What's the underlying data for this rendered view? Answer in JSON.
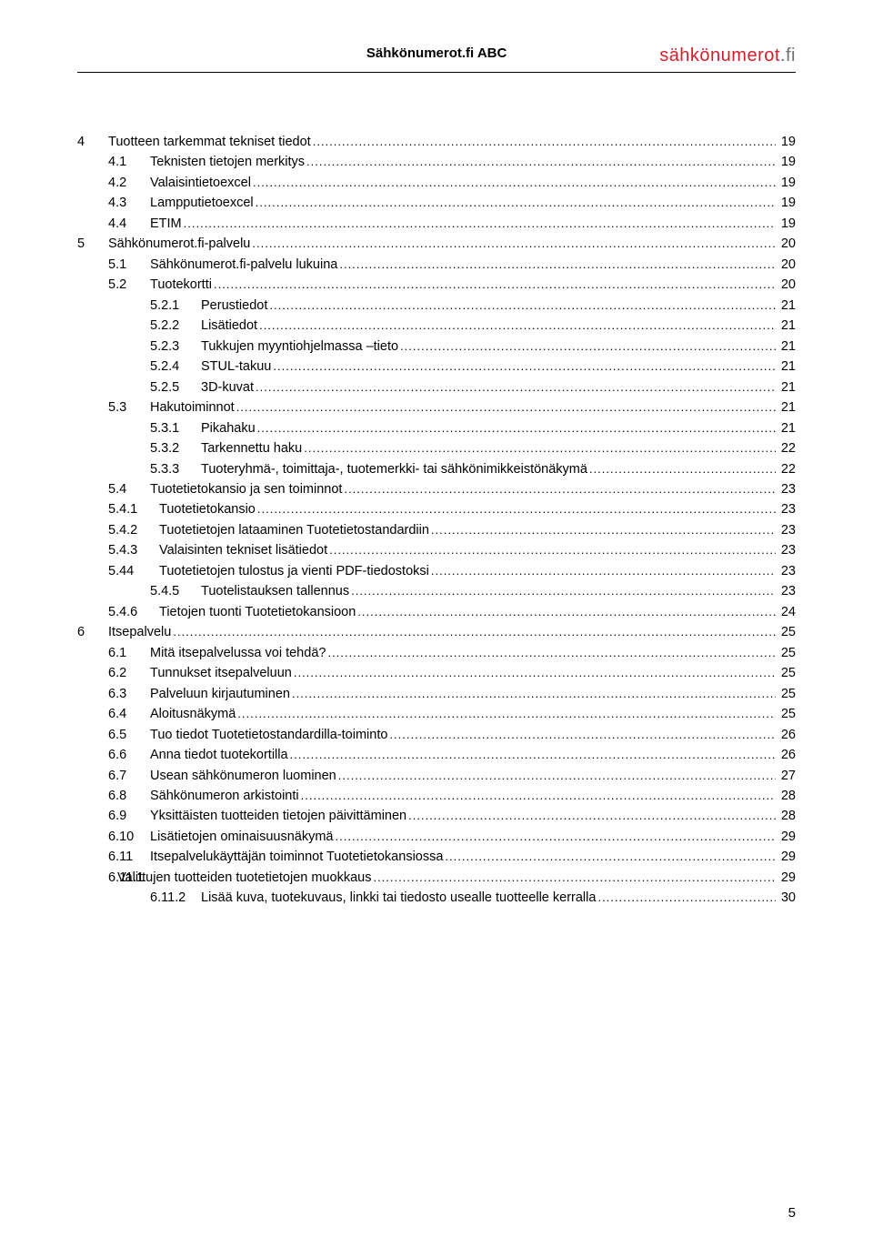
{
  "header": {
    "title": "Sähkönumerot.fi ABC",
    "logo_part1": "sähkönumerot",
    "logo_part2": ".fi"
  },
  "page_number": "5",
  "toc": [
    {
      "lvl": "lvl-1",
      "num": "4",
      "label": "Tuotteen tarkemmat tekniset tiedot",
      "page": "19"
    },
    {
      "lvl": "lvl-2",
      "num": "4.1",
      "label": "Teknisten tietojen merkitys",
      "page": "19"
    },
    {
      "lvl": "lvl-2",
      "num": "4.2",
      "label": "Valaisintietoexcel",
      "page": "19"
    },
    {
      "lvl": "lvl-2",
      "num": "4.3",
      "label": "Lampputietoexcel",
      "page": "19"
    },
    {
      "lvl": "lvl-2",
      "num": "4.4",
      "label": "ETIM",
      "page": "19"
    },
    {
      "lvl": "lvl-1",
      "num": "5",
      "label": "Sähkönumerot.fi-palvelu",
      "page": "20"
    },
    {
      "lvl": "lvl-2",
      "num": "5.1",
      "label": "Sähkönumerot.fi-palvelu lukuina",
      "page": "20"
    },
    {
      "lvl": "lvl-2",
      "num": "5.2",
      "label": "Tuotekortti",
      "page": "20"
    },
    {
      "lvl": "lvl-3",
      "num": "5.2.1",
      "label": "Perustiedot",
      "page": "21"
    },
    {
      "lvl": "lvl-3",
      "num": "5.2.2",
      "label": "Lisätiedot",
      "page": "21"
    },
    {
      "lvl": "lvl-3",
      "num": "5.2.3",
      "label": "Tukkujen myyntiohjelmassa –tieto",
      "page": "21"
    },
    {
      "lvl": "lvl-3",
      "num": "5.2.4",
      "label": "STUL-takuu",
      "page": "21"
    },
    {
      "lvl": "lvl-3",
      "num": "5.2.5",
      "label": "3D-kuvat",
      "page": "21"
    },
    {
      "lvl": "lvl-2",
      "num": "5.3",
      "label": "Hakutoiminnot",
      "page": "21"
    },
    {
      "lvl": "lvl-3",
      "num": "5.3.1",
      "label": "Pikahaku",
      "page": "21"
    },
    {
      "lvl": "lvl-3",
      "num": "5.3.2",
      "label": "Tarkennettu haku",
      "page": "22"
    },
    {
      "lvl": "lvl-3",
      "num": "5.3.3",
      "label": "Tuoteryhmä-, toimittaja-, tuotemerkki- tai sähkönimikkeistönäkymä",
      "page": "22"
    },
    {
      "lvl": "lvl-2",
      "num": "5.4",
      "label": "Tuotetietokansio ja sen toiminnot",
      "page": "23"
    },
    {
      "lvl": "lvl-2alt",
      "num": "5.4.1",
      "label": "Tuotetietokansio",
      "page": "23"
    },
    {
      "lvl": "lvl-2alt",
      "num": "5.4.2",
      "label": "Tuotetietojen lataaminen Tuotetietostandardiin",
      "page": "23"
    },
    {
      "lvl": "lvl-2alt",
      "num": "5.4.3",
      "label": "Valaisinten tekniset lisätiedot",
      "page": "23"
    },
    {
      "lvl": "lvl-2alt",
      "num": "5.44",
      "label": "Tuotetietojen tulostus ja vienti PDF-tiedostoksi",
      "page": "23"
    },
    {
      "lvl": "lvl-3b",
      "num": "5.4.5",
      "label": "Tuotelistauksen tallennus",
      "page": "23"
    },
    {
      "lvl": "lvl-2alt",
      "num": "5.4.6",
      "label": "Tietojen tuonti Tuotetietokansioon",
      "page": "24"
    },
    {
      "lvl": "lvl-1",
      "num": "6",
      "label": "Itsepalvelu",
      "page": "25"
    },
    {
      "lvl": "lvl-2",
      "num": "6.1",
      "label": "Mitä itsepalvelussa voi tehdä?",
      "page": "25"
    },
    {
      "lvl": "lvl-2",
      "num": "6.2",
      "label": "Tunnukset itsepalveluun",
      "page": "25"
    },
    {
      "lvl": "lvl-2",
      "num": "6.3",
      "label": "Palveluun kirjautuminen",
      "page": "25"
    },
    {
      "lvl": "lvl-2",
      "num": "6.4",
      "label": "Aloitusnäkymä",
      "page": "25"
    },
    {
      "lvl": "lvl-2",
      "num": "6.5",
      "label": "Tuo tiedot Tuotetietostandardilla-toiminto",
      "page": "26"
    },
    {
      "lvl": "lvl-2",
      "num": "6.6",
      "label": "Anna tiedot tuotekortilla",
      "page": "26"
    },
    {
      "lvl": "lvl-2",
      "num": "6.7",
      "label": "Usean sähkönumeron luominen",
      "page": "27"
    },
    {
      "lvl": "lvl-2",
      "num": "6.8",
      "label": "Sähkönumeron arkistointi",
      "page": "28"
    },
    {
      "lvl": "lvl-2",
      "num": "6.9",
      "label": "Yksittäisten tuotteiden tietojen päivittäminen",
      "page": "28"
    },
    {
      "lvl": "lvl-2",
      "num": "6.10",
      "label": "Lisätietojen ominaisuusnäkymä",
      "page": "29"
    },
    {
      "lvl": "lvl-2",
      "num": "6.11",
      "label": "Itsepalvelukäyttäjän toiminnot Tuotetietokansiossa",
      "page": "29"
    },
    {
      "lvl": "lvl-2b",
      "num": "6.11.1",
      "label": "Valittujen tuotteiden tuotetietojen muokkaus",
      "page": "29"
    },
    {
      "lvl": "lvl-3",
      "num": "6.11.2",
      "label": "Lisää kuva, tuotekuvaus, linkki tai tiedosto usealle tuotteelle kerralla",
      "page": "30"
    }
  ]
}
